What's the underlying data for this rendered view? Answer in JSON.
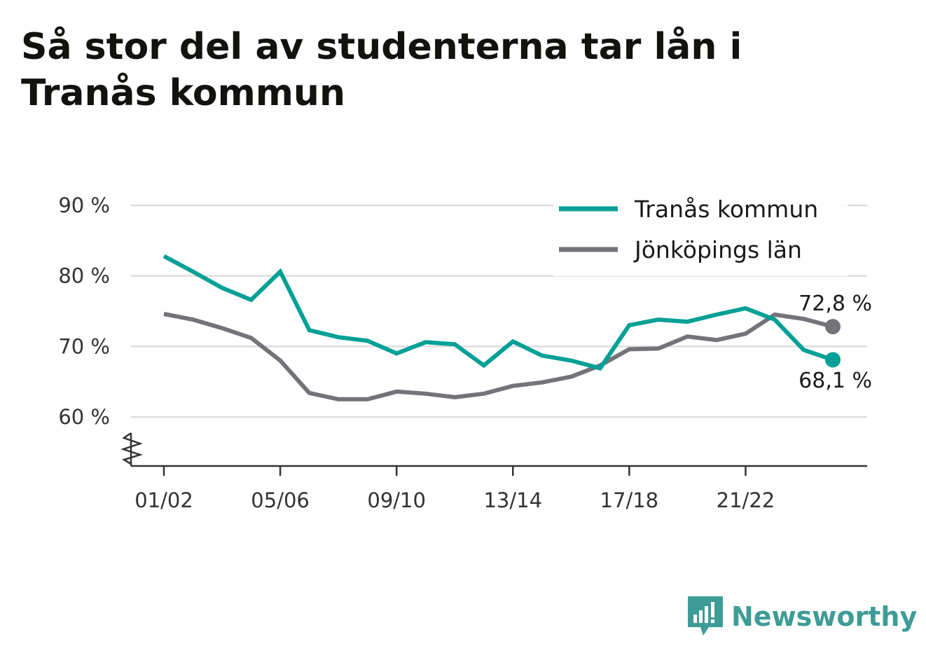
{
  "title": "Så stor del av studenterna tar lån i Tranås kommun",
  "brand": {
    "name": "Newsworthy",
    "icon": "newsworthy-logo-icon",
    "color": "#3e9c97"
  },
  "colors": {
    "series_0": "#00a096",
    "series_1": "#74737a",
    "grid": "#dddddd",
    "axis": "#333333"
  },
  "chart_data": {
    "type": "line",
    "title": "Så stor del av studenterna tar lån i Tranås kommun",
    "xlabel": "",
    "ylabel": "",
    "x": [
      "01/02",
      "02/03",
      "03/04",
      "04/05",
      "05/06",
      "06/07",
      "07/08",
      "08/09",
      "09/10",
      "10/11",
      "11/12",
      "12/13",
      "13/14",
      "14/15",
      "15/16",
      "16/17",
      "17/18",
      "18/19",
      "19/20",
      "20/21",
      "21/22",
      "22/23",
      "23/24",
      "24/25"
    ],
    "x_tick_labels": [
      "01/02",
      "05/06",
      "09/10",
      "13/14",
      "17/18",
      "21/22"
    ],
    "ylim": [
      55,
      90
    ],
    "y_ticks": [
      60,
      70,
      80,
      90
    ],
    "y_tick_labels": [
      "60 %",
      "70 %",
      "80 %",
      "90 %"
    ],
    "y_axis_break": true,
    "grid": true,
    "legend_position": "top-right",
    "series": [
      {
        "name": "Tranås kommun",
        "color": "#00a096",
        "values": [
          82.8,
          80.6,
          78.3,
          76.6,
          80.6,
          72.3,
          71.3,
          70.8,
          69.0,
          70.6,
          70.3,
          67.3,
          70.7,
          68.7,
          68.0,
          66.9,
          73.0,
          73.8,
          73.5,
          74.5,
          75.4,
          73.8,
          69.5,
          68.1
        ],
        "end_label": "68,1 %"
      },
      {
        "name": "Jönköpings län",
        "color": "#74737a",
        "values": [
          74.6,
          73.8,
          72.6,
          71.2,
          68.0,
          63.4,
          62.5,
          62.5,
          63.6,
          63.3,
          62.8,
          63.3,
          64.4,
          64.9,
          65.7,
          67.3,
          69.6,
          69.7,
          71.4,
          70.9,
          71.8,
          74.5,
          73.9,
          72.8
        ],
        "end_label": "72,8 %"
      }
    ]
  }
}
